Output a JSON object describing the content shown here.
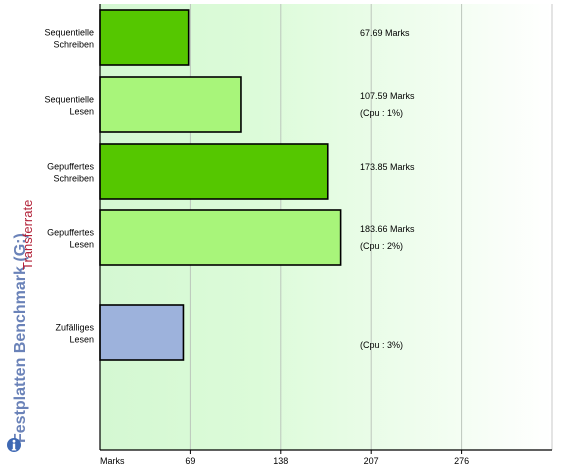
{
  "title": "Festplatten Benchmark (G:)",
  "subtitle": "Transferrate",
  "colors": {
    "background_gradient_start": "#d4f8d2",
    "background_gradient_end": "#ffffff",
    "dark_green": "#55c700",
    "light_green": "#a8f57a",
    "blue": "#9db2dc",
    "title_color": "#6a82b8",
    "subtitle_color": "#b3243a"
  },
  "icons": {
    "info": "info-icon"
  },
  "chart_data": {
    "type": "bar",
    "orientation": "horizontal",
    "title": "Festplatten Benchmark (G:)",
    "subtitle": "Transferrate",
    "xlabel": "Marks",
    "xlim": [
      0,
      345
    ],
    "xticks": [
      69,
      138,
      207,
      276
    ],
    "grid": true,
    "bars": [
      {
        "label_lines": [
          "Sequentielle",
          "Schreiben"
        ],
        "value": 67.69,
        "value_label": "67.69 Marks",
        "cpu_label": "",
        "color": "#55c700"
      },
      {
        "label_lines": [
          "Sequentielle",
          "Lesen"
        ],
        "value": 107.59,
        "value_label": "107.59 Marks",
        "cpu_label": "(Cpu : 1%)",
        "color": "#a8f57a"
      },
      {
        "label_lines": [
          "Gepuffertes",
          "Schreiben"
        ],
        "value": 173.85,
        "value_label": "173.85 Marks",
        "cpu_label": "",
        "color": "#55c700"
      },
      {
        "label_lines": [
          "Gepuffertes",
          "Lesen"
        ],
        "value": 183.66,
        "value_label": "183.66 Marks",
        "cpu_label": "(Cpu : 2%)",
        "color": "#a8f57a"
      },
      {
        "label_lines": [
          "Zufälliges",
          "Lesen"
        ],
        "value": 63.7,
        "value_label": "",
        "cpu_label": "(Cpu : 3%)",
        "color": "#9db2dc"
      }
    ]
  }
}
